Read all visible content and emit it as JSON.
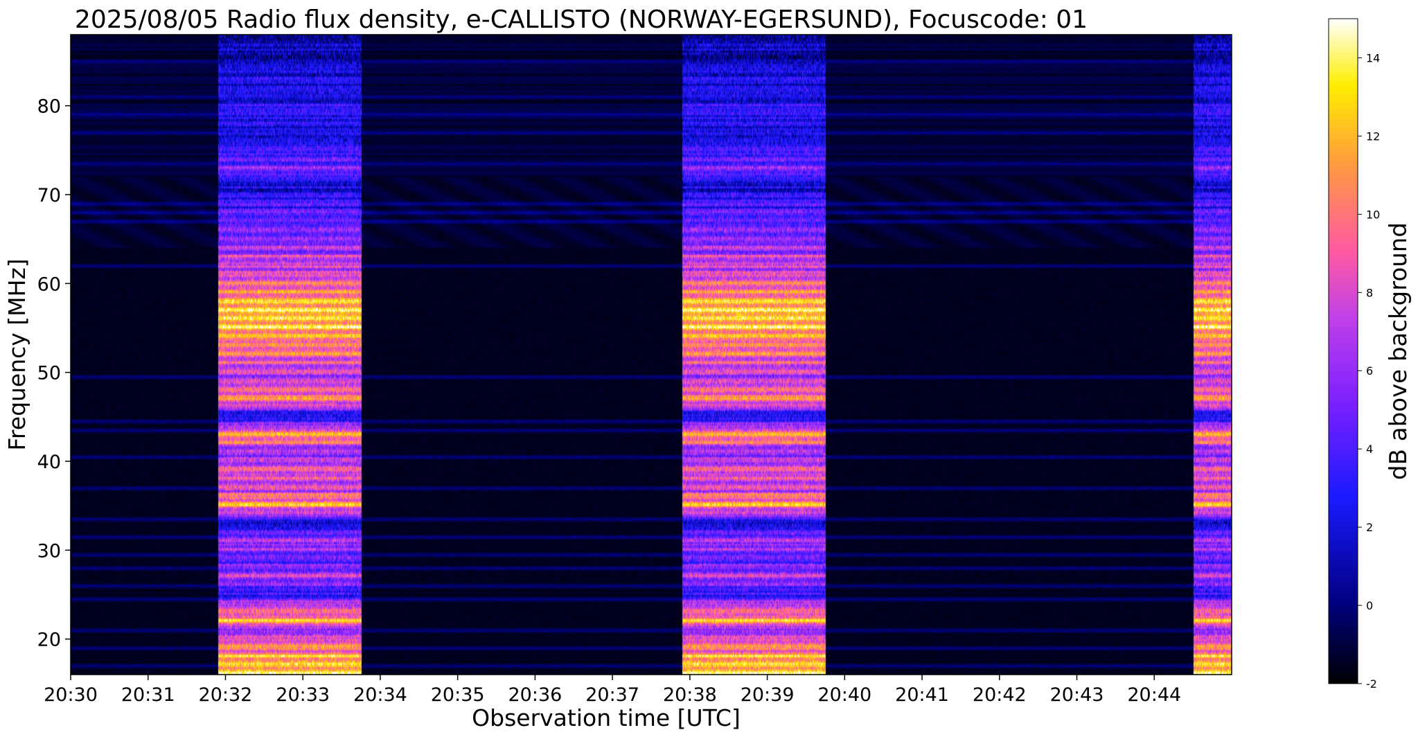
{
  "chart_data": {
    "type": "heatmap",
    "title": "2025/08/05  Radio flux density, e-CALLISTO (NORWAY-EGERSUND), Focuscode: 01",
    "xlabel": "Observation time [UTC]",
    "ylabel": "Frequency [MHz]",
    "colorbar_label": "dB above background",
    "colormap": "gnuplot2",
    "x_ticks": [
      "20:30",
      "20:31",
      "20:32",
      "20:33",
      "20:34",
      "20:35",
      "20:36",
      "20:37",
      "20:38",
      "20:39",
      "20:40",
      "20:41",
      "20:42",
      "20:43",
      "20:44"
    ],
    "xlim_minutes": [
      0,
      15
    ],
    "y_ticks": [
      20,
      30,
      40,
      50,
      60,
      70,
      80
    ],
    "ylim": [
      16,
      88
    ],
    "colorbar_ticks": [
      -2,
      0,
      2,
      4,
      6,
      8,
      10,
      12,
      14
    ],
    "colorbar_range": [
      -2,
      15
    ],
    "bright_intervals_minutes": [
      [
        1.9,
        3.75
      ],
      [
        7.9,
        9.75
      ],
      [
        14.5,
        15.0
      ]
    ],
    "background_db": -1.5,
    "band_profile": [
      {
        "mhz": 17,
        "db": 14
      },
      {
        "mhz": 19,
        "db": 12
      },
      {
        "mhz": 21,
        "db": 6
      },
      {
        "mhz": 22,
        "db": 13
      },
      {
        "mhz": 24,
        "db": 8
      },
      {
        "mhz": 25,
        "db": 3
      },
      {
        "mhz": 27,
        "db": 8
      },
      {
        "mhz": 29,
        "db": 5
      },
      {
        "mhz": 31,
        "db": 8
      },
      {
        "mhz": 33,
        "db": 1
      },
      {
        "mhz": 35,
        "db": 13
      },
      {
        "mhz": 37,
        "db": 9
      },
      {
        "mhz": 39,
        "db": 10
      },
      {
        "mhz": 41,
        "db": 7
      },
      {
        "mhz": 43,
        "db": 13
      },
      {
        "mhz": 45,
        "db": 2
      },
      {
        "mhz": 47,
        "db": 12
      },
      {
        "mhz": 49,
        "db": 8
      },
      {
        "mhz": 51,
        "db": 9
      },
      {
        "mhz": 54,
        "db": 13
      },
      {
        "mhz": 57,
        "db": 15
      },
      {
        "mhz": 59,
        "db": 12
      },
      {
        "mhz": 61,
        "db": 9
      },
      {
        "mhz": 63,
        "db": 8
      },
      {
        "mhz": 65,
        "db": 7
      },
      {
        "mhz": 67,
        "db": 5
      },
      {
        "mhz": 69,
        "db": 4
      },
      {
        "mhz": 71,
        "db": 2
      },
      {
        "mhz": 73,
        "db": 6
      },
      {
        "mhz": 76,
        "db": 3
      },
      {
        "mhz": 78,
        "db": 3
      },
      {
        "mhz": 81,
        "db": 3
      },
      {
        "mhz": 84,
        "db": 2
      },
      {
        "mhz": 88,
        "db": 1
      }
    ],
    "quiet_bands_mhz": [
      17,
      19,
      21,
      24.5,
      26,
      28,
      29.5,
      31.5,
      33.5,
      37,
      40.5,
      43.5,
      44.5,
      49.5,
      62,
      67,
      68,
      69,
      73.5,
      77,
      79,
      81,
      85
    ]
  }
}
